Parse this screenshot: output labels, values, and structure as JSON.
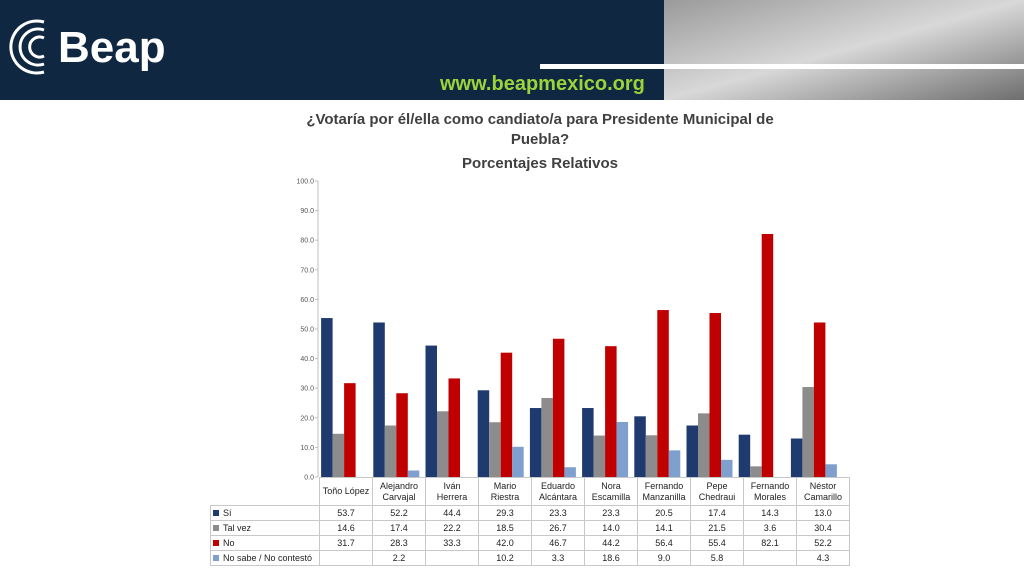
{
  "header": {
    "logo": "Beap",
    "url": "www.beapmexico.org"
  },
  "chart_data": {
    "type": "bar",
    "title": "¿Votaría por él/ella como candiato/a para Presidente Municipal de Puebla?",
    "subtitle": "Porcentajes Relativos",
    "categories": [
      "Toño López",
      "Alejandro Carvajal",
      "Iván Herrera",
      "Mario Riestra",
      "Eduardo Alcántara",
      "Nora Escamilla",
      "Fernando Manzanilla",
      "Pepe Chedraui",
      "Fernando Morales",
      "Néstor Camarillo"
    ],
    "series": [
      {
        "name": "Sí",
        "color": "#1f3a6e",
        "values": [
          53.7,
          52.2,
          44.4,
          29.3,
          23.3,
          23.3,
          20.5,
          17.4,
          14.3,
          13.0
        ],
        "value_labels": [
          "53.7",
          "52.2",
          "44.4",
          "29.3",
          "23.3",
          "23.3",
          "20.5",
          "17.4",
          "14.3",
          "13.0"
        ]
      },
      {
        "name": "Tal vez",
        "color": "#8c8c8c",
        "values": [
          14.6,
          17.4,
          22.2,
          18.5,
          26.7,
          14.0,
          14.1,
          21.5,
          3.6,
          30.4
        ],
        "value_labels": [
          "14.6",
          "17.4",
          "22.2",
          "18.5",
          "26.7",
          "14.0",
          "14.1",
          "21.5",
          "3.6",
          "30.4"
        ]
      },
      {
        "name": "No",
        "color": "#c00000",
        "values": [
          31.7,
          28.3,
          33.3,
          42.0,
          46.7,
          44.2,
          56.4,
          55.4,
          82.1,
          52.2
        ],
        "value_labels": [
          "31.7",
          "28.3",
          "33.3",
          "42.0",
          "46.7",
          "44.2",
          "56.4",
          "55.4",
          "82.1",
          "52.2"
        ]
      },
      {
        "name": "No sabe / No contestó",
        "color": "#7f9fcf",
        "values": [
          null,
          2.2,
          null,
          10.2,
          3.3,
          18.6,
          9.0,
          5.8,
          null,
          4.3
        ],
        "value_labels": [
          null,
          "2.2",
          null,
          "10.2",
          "3.3",
          "18.6",
          "9.0",
          "5.8",
          null,
          "4.3"
        ]
      }
    ],
    "ylim": [
      0,
      100
    ],
    "yticks": [
      {
        "value": 0,
        "label": "0.0"
      },
      {
        "value": 10,
        "label": "10.0"
      },
      {
        "value": 20,
        "label": "20.0"
      },
      {
        "value": 30,
        "label": "30.0"
      },
      {
        "value": 40,
        "label": "40.0"
      },
      {
        "value": 50,
        "label": "50.0"
      },
      {
        "value": 60,
        "label": "60.0"
      },
      {
        "value": 70,
        "label": "70.0"
      },
      {
        "value": 80,
        "label": "80.0"
      },
      {
        "value": 90,
        "label": "90.0"
      },
      {
        "value": 100,
        "label": "100.0"
      }
    ]
  }
}
